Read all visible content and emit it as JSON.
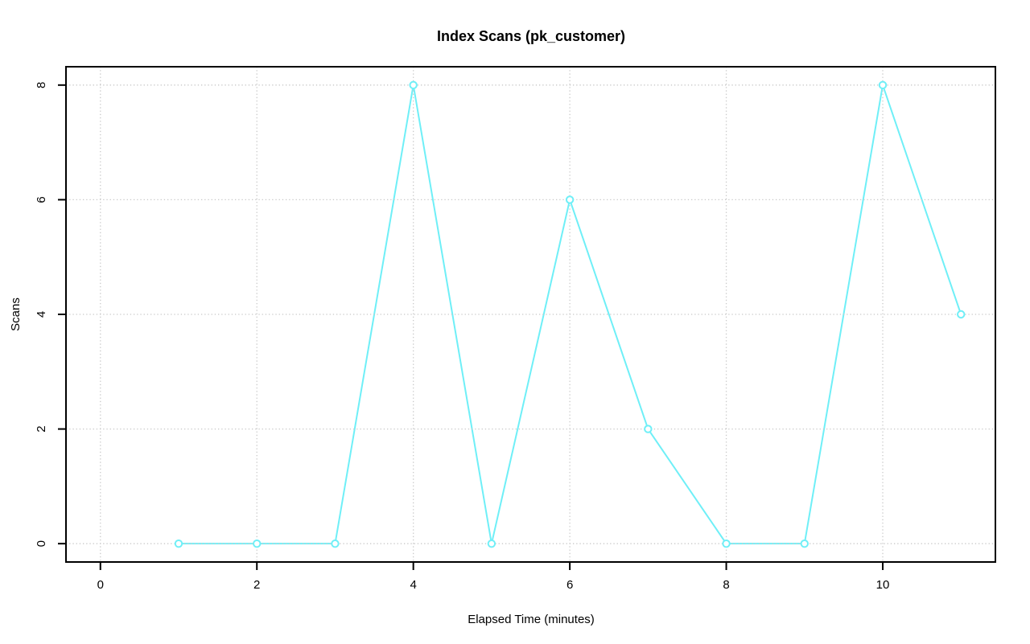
{
  "page": {
    "background": "#FFFFFF"
  },
  "chart_data": {
    "type": "line",
    "title": "Index Scans (pk_customer)",
    "xlabel": "Elapsed Time (minutes)",
    "ylabel": "Scans",
    "x": [
      1,
      2,
      3,
      4,
      5,
      6,
      7,
      8,
      9,
      10,
      11
    ],
    "values": [
      0,
      0,
      0,
      8,
      0,
      6,
      2,
      0,
      0,
      8,
      4
    ],
    "x_ticks": [
      0,
      2,
      4,
      6,
      8,
      10
    ],
    "y_ticks": [
      0,
      2,
      4,
      6,
      8
    ],
    "xlim": [
      -0.44,
      11.44
    ],
    "ylim": [
      -0.32,
      8.32
    ],
    "grid": true,
    "grid_style": "dotted",
    "legend": "none",
    "marker": "open-circle",
    "line_color": "#6FEFF7",
    "marker_fill": "#FFFFFF",
    "grid_color": "#C8C8C8",
    "axis_color": "#000000",
    "text_color": "#000000"
  }
}
